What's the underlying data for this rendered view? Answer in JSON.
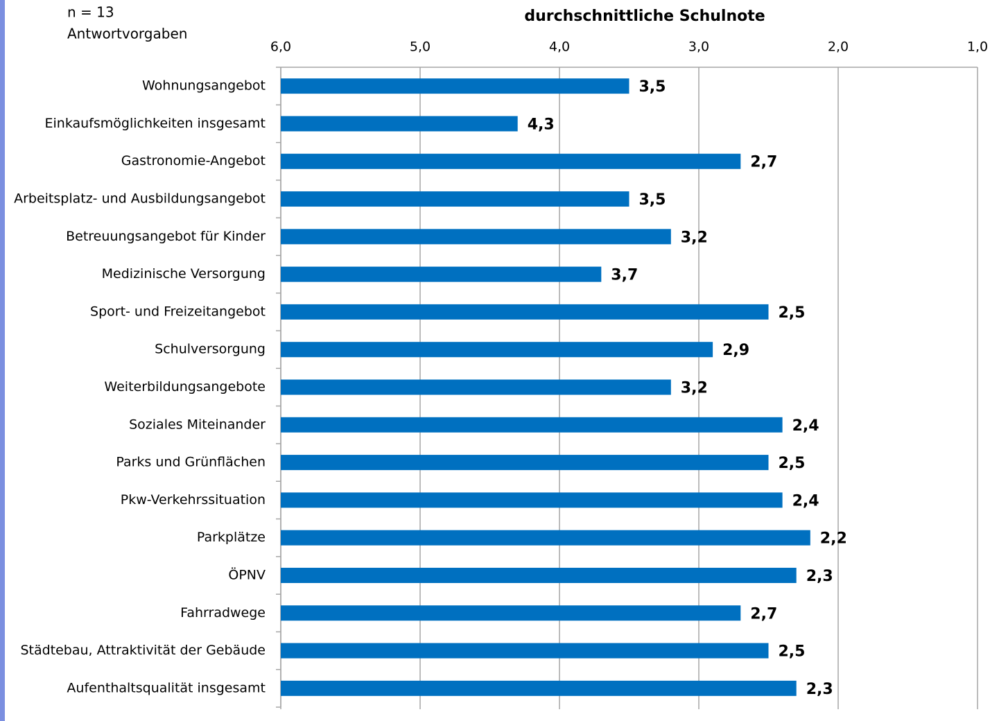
{
  "chart_data": {
    "type": "bar",
    "orientation": "horizontal",
    "annotations": [
      "n = 13",
      "Antwortvorgaben"
    ],
    "x_label": "durchschnittliche Schulnote",
    "categories": [
      "Wohnungsangebot",
      "Einkaufsmöglichkeiten insgesamt",
      "Gastronomie-Angebot",
      "Arbeitsplatz- und Ausbildungsangebot",
      "Betreuungsangebot für Kinder",
      "Medizinische Versorgung",
      "Sport- und Freizeitangebot",
      "Schulversorgung",
      "Weiterbildungsangebote",
      "Soziales Miteinander",
      "Parks und Grünflächen",
      "Pkw-Verkehrssituation",
      "Parkplätze",
      "ÖPNV",
      "Fahrradwege",
      "Städtebau, Attraktivität der Gebäude",
      "Aufenthaltsqualität insgesamt"
    ],
    "values": [
      3.5,
      4.3,
      2.7,
      3.5,
      3.2,
      3.7,
      2.5,
      2.9,
      3.2,
      2.4,
      2.5,
      2.4,
      2.2,
      2.3,
      2.7,
      2.5,
      2.3
    ],
    "value_labels": [
      "3,5",
      "4,3",
      "2,7",
      "3,5",
      "3,2",
      "3,7",
      "2,5",
      "2,9",
      "3,2",
      "2,4",
      "2,5",
      "2,4",
      "2,2",
      "2,3",
      "2,7",
      "2,5",
      "2,3"
    ],
    "color": "#0070c0",
    "xlim": [
      6,
      1
    ],
    "xticks": [
      {
        "value": 6,
        "label": "6,0"
      },
      {
        "value": 5,
        "label": "5,0"
      },
      {
        "value": 4,
        "label": "4,0"
      },
      {
        "value": 3,
        "label": "3,0"
      },
      {
        "value": 2,
        "label": "2,0"
      },
      {
        "value": 1,
        "label": "1,0"
      }
    ],
    "grid": true
  }
}
